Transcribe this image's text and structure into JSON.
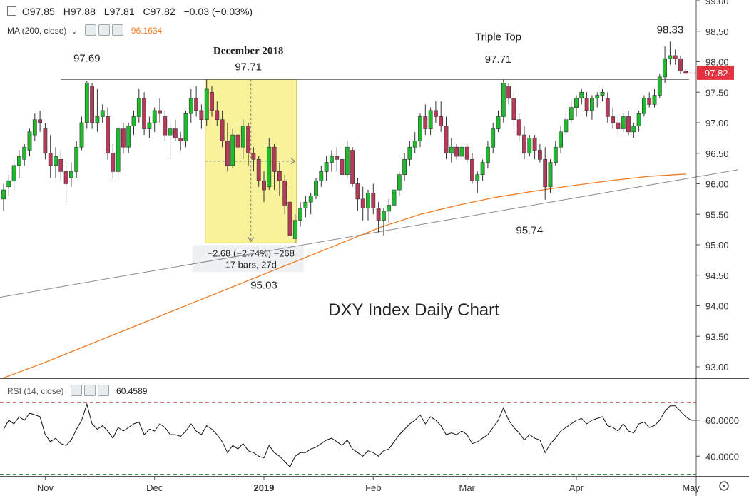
{
  "header": {
    "ohlc": [
      {
        "label": "O",
        "value": "97.85"
      },
      {
        "label": "H",
        "value": "97.88"
      },
      {
        "label": "L",
        "value": "97.81"
      },
      {
        "label": "C",
        "value": "97.82"
      }
    ],
    "change": "−0.03 (−0.03%)",
    "ma_label": "MA (200, close)",
    "ma_value": "96.1634",
    "rsi_label": "RSI (14, close)",
    "rsi_value": "60.4589"
  },
  "colors": {
    "up": "#1fbb2e",
    "down": "#b53a57",
    "ma": "#f07b25",
    "price_badge": "#e33240",
    "highlight": "#f8f29a",
    "rsi_line": "#111111",
    "rsi_upper": "#d23a3a",
    "rsi_lower": "#2a9a3c"
  },
  "chart_data": [
    {
      "type": "candlestick",
      "title": "DXY Index Daily Chart",
      "xlabel": "",
      "ylabel": "",
      "ylim": [
        92.75,
        99.0
      ],
      "y_ticks": [
        "93.00",
        "93.50",
        "94.00",
        "94.50",
        "95.00",
        "95.50",
        "96.00",
        "96.50",
        "97.00",
        "97.50",
        "98.00",
        "98.50",
        "99.00"
      ],
      "x_ticks": [
        {
          "label": "Nov",
          "index": 8
        },
        {
          "label": "Dec",
          "index": 29
        },
        {
          "label": "2019",
          "index": 50,
          "bold": true
        },
        {
          "label": "Feb",
          "index": 71
        },
        {
          "label": "Mar",
          "index": 89
        },
        {
          "label": "Apr",
          "index": 110
        },
        {
          "label": "May",
          "index": 132
        }
      ],
      "last_price": "97.82",
      "candles": [
        [
          95.75,
          96.0,
          95.55,
          95.9
        ],
        [
          95.95,
          96.15,
          95.8,
          96.05
        ],
        [
          96.05,
          96.4,
          95.9,
          96.3
        ],
        [
          96.3,
          96.55,
          96.1,
          96.45
        ],
        [
          96.4,
          96.65,
          96.3,
          96.6
        ],
        [
          96.55,
          96.9,
          96.45,
          96.85
        ],
        [
          96.8,
          97.15,
          96.7,
          97.05
        ],
        [
          97.05,
          97.2,
          96.85,
          97.0
        ],
        [
          96.9,
          97.0,
          96.4,
          96.5
        ],
        [
          96.5,
          96.8,
          96.1,
          96.3
        ],
        [
          96.3,
          96.6,
          96.1,
          96.45
        ],
        [
          96.4,
          96.55,
          96.05,
          96.2
        ],
        [
          96.2,
          96.35,
          95.7,
          96.0
        ],
        [
          96.1,
          96.35,
          95.95,
          96.2
        ],
        [
          96.2,
          96.7,
          96.1,
          96.6
        ],
        [
          96.6,
          97.1,
          96.55,
          97.0
        ],
        [
          97.0,
          97.69,
          96.9,
          97.65
        ],
        [
          97.6,
          97.65,
          96.9,
          97.0
        ],
        [
          97.0,
          97.55,
          96.85,
          97.1
        ],
        [
          97.1,
          97.3,
          97.0,
          97.2
        ],
        [
          97.1,
          97.25,
          96.4,
          96.5
        ],
        [
          96.5,
          96.65,
          96.1,
          96.2
        ],
        [
          96.2,
          96.95,
          96.1,
          96.9
        ],
        [
          96.9,
          97.0,
          96.5,
          96.6
        ],
        [
          96.6,
          97.0,
          96.5,
          96.95
        ],
        [
          96.95,
          97.2,
          96.8,
          97.1
        ],
        [
          97.1,
          97.55,
          97.0,
          97.4
        ],
        [
          97.4,
          97.5,
          96.8,
          96.9
        ],
        [
          96.9,
          97.1,
          96.75,
          97.0
        ],
        [
          97.0,
          97.25,
          96.85,
          97.2
        ],
        [
          97.2,
          97.4,
          97.0,
          97.15
        ],
        [
          97.1,
          97.2,
          96.7,
          96.8
        ],
        [
          96.8,
          97.0,
          96.4,
          96.9
        ],
        [
          96.9,
          97.05,
          96.7,
          96.75
        ],
        [
          96.75,
          96.85,
          96.55,
          96.7
        ],
        [
          96.7,
          97.2,
          96.6,
          97.15
        ],
        [
          97.15,
          97.55,
          97.0,
          97.4
        ],
        [
          97.4,
          97.6,
          97.1,
          97.2
        ],
        [
          97.2,
          97.3,
          96.9,
          97.05
        ],
        [
          97.05,
          97.71,
          96.95,
          97.55
        ],
        [
          97.5,
          97.6,
          97.1,
          97.2
        ],
        [
          97.2,
          97.35,
          96.95,
          97.05
        ],
        [
          97.05,
          97.2,
          96.6,
          96.7
        ],
        [
          96.7,
          97.0,
          96.2,
          96.3
        ],
        [
          96.3,
          96.9,
          96.25,
          96.8
        ],
        [
          96.8,
          97.0,
          96.5,
          96.6
        ],
        [
          96.6,
          97.05,
          96.4,
          96.95
        ],
        [
          96.95,
          97.0,
          96.3,
          96.5
        ],
        [
          96.5,
          96.6,
          96.2,
          96.4
        ],
        [
          96.4,
          96.45,
          95.95,
          96.05
        ],
        [
          96.05,
          96.2,
          95.7,
          95.9
        ],
        [
          95.95,
          96.75,
          95.9,
          96.6
        ],
        [
          96.6,
          96.65,
          95.9,
          96.2
        ],
        [
          96.2,
          96.35,
          95.8,
          96.05
        ],
        [
          96.05,
          96.15,
          95.5,
          95.65
        ],
        [
          95.7,
          96.0,
          95.1,
          95.15
        ],
        [
          95.1,
          95.5,
          95.03,
          95.4
        ],
        [
          95.4,
          95.7,
          95.3,
          95.6
        ],
        [
          95.6,
          95.8,
          95.45,
          95.7
        ],
        [
          95.7,
          95.85,
          95.5,
          95.8
        ],
        [
          95.8,
          96.1,
          95.75,
          96.05
        ],
        [
          96.05,
          96.3,
          95.95,
          96.2
        ],
        [
          96.2,
          96.45,
          96.05,
          96.35
        ],
        [
          96.35,
          96.55,
          96.2,
          96.45
        ],
        [
          96.45,
          96.6,
          96.2,
          96.4
        ],
        [
          96.4,
          96.55,
          96.05,
          96.15
        ],
        [
          96.15,
          96.7,
          96.1,
          96.6
        ],
        [
          96.55,
          96.6,
          95.95,
          96.0
        ],
        [
          96.0,
          96.1,
          95.55,
          95.75
        ],
        [
          95.75,
          95.95,
          95.4,
          95.6
        ],
        [
          95.6,
          95.9,
          95.4,
          95.85
        ],
        [
          95.85,
          96.0,
          95.5,
          95.6
        ],
        [
          95.6,
          95.7,
          95.2,
          95.4
        ],
        [
          95.4,
          95.6,
          95.15,
          95.55
        ],
        [
          95.55,
          95.75,
          95.35,
          95.65
        ],
        [
          95.65,
          96.0,
          95.55,
          95.9
        ],
        [
          95.9,
          96.2,
          95.8,
          96.15
        ],
        [
          96.15,
          96.5,
          96.05,
          96.4
        ],
        [
          96.4,
          96.7,
          96.3,
          96.6
        ],
        [
          96.6,
          96.85,
          96.5,
          96.7
        ],
        [
          96.7,
          97.15,
          96.6,
          97.1
        ],
        [
          97.1,
          97.3,
          96.8,
          96.9
        ],
        [
          96.9,
          97.25,
          96.8,
          97.2
        ],
        [
          97.2,
          97.35,
          97.0,
          97.1
        ],
        [
          97.1,
          97.35,
          96.85,
          96.95
        ],
        [
          96.95,
          97.1,
          96.4,
          96.5
        ],
        [
          96.5,
          96.75,
          96.35,
          96.6
        ],
        [
          96.6,
          96.65,
          96.4,
          96.45
        ],
        [
          96.45,
          96.65,
          96.4,
          96.6
        ],
        [
          96.6,
          96.65,
          96.35,
          96.4
        ],
        [
          96.4,
          96.5,
          96.0,
          96.05
        ],
        [
          96.05,
          96.2,
          95.85,
          96.15
        ],
        [
          96.15,
          96.4,
          96.05,
          96.35
        ],
        [
          96.35,
          96.7,
          96.25,
          96.6
        ],
        [
          96.6,
          97.0,
          96.5,
          96.9
        ],
        [
          96.9,
          97.2,
          96.85,
          97.1
        ],
        [
          97.1,
          97.71,
          97.0,
          97.65
        ],
        [
          97.6,
          97.65,
          97.3,
          97.4
        ],
        [
          97.4,
          97.5,
          96.95,
          97.05
        ],
        [
          97.05,
          97.15,
          96.7,
          96.8
        ],
        [
          96.8,
          96.95,
          96.4,
          96.5
        ],
        [
          96.5,
          96.8,
          96.45,
          96.75
        ],
        [
          96.75,
          96.8,
          96.4,
          96.55
        ],
        [
          96.55,
          96.65,
          96.35,
          96.4
        ],
        [
          96.4,
          96.6,
          95.74,
          95.95
        ],
        [
          95.95,
          96.4,
          95.85,
          96.35
        ],
        [
          96.35,
          96.7,
          96.3,
          96.6
        ],
        [
          96.6,
          96.95,
          96.5,
          96.85
        ],
        [
          96.85,
          97.15,
          96.8,
          97.05
        ],
        [
          97.05,
          97.35,
          97.0,
          97.25
        ],
        [
          97.25,
          97.45,
          97.1,
          97.4
        ],
        [
          97.4,
          97.55,
          97.3,
          97.5
        ],
        [
          97.4,
          97.5,
          97.1,
          97.2
        ],
        [
          97.2,
          97.45,
          97.05,
          97.4
        ],
        [
          97.4,
          97.5,
          97.25,
          97.45
        ],
        [
          97.45,
          97.55,
          97.35,
          97.5
        ],
        [
          97.4,
          97.5,
          97.0,
          97.1
        ],
        [
          97.1,
          97.25,
          96.9,
          97.0
        ],
        [
          97.0,
          97.1,
          96.8,
          96.9
        ],
        [
          96.9,
          97.15,
          96.85,
          97.1
        ],
        [
          97.1,
          97.2,
          96.8,
          96.85
        ],
        [
          96.85,
          97.0,
          96.75,
          96.95
        ],
        [
          96.95,
          97.2,
          96.85,
          97.15
        ],
        [
          97.15,
          97.45,
          97.1,
          97.4
        ],
        [
          97.4,
          97.5,
          97.25,
          97.3
        ],
        [
          97.3,
          97.55,
          97.25,
          97.45
        ],
        [
          97.45,
          97.8,
          97.4,
          97.75
        ],
        [
          97.75,
          98.25,
          97.65,
          98.05
        ],
        [
          98.05,
          98.33,
          97.95,
          98.1
        ],
        [
          98.1,
          98.2,
          97.95,
          98.05
        ],
        [
          98.05,
          98.1,
          97.8,
          97.85
        ],
        [
          97.85,
          97.88,
          97.81,
          97.82
        ]
      ],
      "ma200": [
        92.82,
        93.05,
        93.3,
        93.55,
        93.8,
        94.05,
        94.3,
        94.55,
        94.8,
        95.05,
        95.3,
        95.5,
        95.65,
        95.78,
        95.88,
        95.97,
        96.05,
        96.12,
        96.16
      ],
      "ma200_span": [
        0,
        131
      ],
      "overlays": {
        "horizontal_level": 97.71,
        "trendline": {
          "from": [
            -2,
            94.12
          ],
          "to": [
            141,
            96.23
          ]
        },
        "highlight": {
          "from_index": 39,
          "to_index": 56,
          "top": 97.71,
          "bottom": 95.03
        },
        "measure": {
          "line1": "−2.68 (−2.74%) −268",
          "line2": "17 bars, 27d"
        }
      },
      "annotations": [
        {
          "text": "97.69",
          "index": 16,
          "price": 98.0
        },
        {
          "text": "December 2018",
          "index": 47,
          "price": 98.13,
          "bold": true
        },
        {
          "text": "97.71",
          "index": 47,
          "price": 97.86
        },
        {
          "text": "Triple Top",
          "index": 95,
          "price": 98.35
        },
        {
          "text": "97.71",
          "index": 95,
          "price": 97.98
        },
        {
          "text": "98.33",
          "index": 128,
          "price": 98.47
        },
        {
          "text": "95.74",
          "index": 101,
          "price": 95.18
        },
        {
          "text": "95.03",
          "index": 50,
          "price": 94.28
        }
      ]
    },
    {
      "type": "line",
      "title": "",
      "series_name": "RSI (14, close)",
      "ylim": [
        29,
        83
      ],
      "y_ticks": [
        "40.0000",
        "60.0000"
      ],
      "bands": [
        70,
        30
      ],
      "values": [
        55,
        60,
        58,
        62,
        60,
        64,
        63,
        62,
        52,
        48,
        50,
        47,
        46,
        49,
        55,
        60,
        69,
        58,
        55,
        57,
        54,
        50,
        56,
        54,
        56,
        58,
        59,
        52,
        55,
        54,
        58,
        56,
        52,
        52,
        51,
        54,
        58,
        54,
        52,
        57,
        55,
        52,
        48,
        42,
        46,
        44,
        47,
        43,
        42,
        40,
        39,
        46,
        42,
        40,
        37,
        34,
        40,
        42,
        42,
        44,
        45,
        47,
        49,
        50,
        48,
        46,
        49,
        44,
        42,
        40,
        43,
        42,
        40,
        43,
        44,
        48,
        52,
        55,
        58,
        60,
        63,
        58,
        62,
        60,
        57,
        52,
        53,
        52,
        54,
        52,
        47,
        48,
        50,
        52,
        56,
        60,
        67,
        60,
        56,
        53,
        49,
        52,
        50,
        49,
        42,
        47,
        50,
        54,
        56,
        58,
        60,
        61,
        58,
        60,
        61,
        62,
        57,
        56,
        54,
        58,
        54,
        53,
        58,
        59,
        56,
        57,
        60,
        65,
        68,
        68,
        65,
        62,
        60,
        60
      ]
    }
  ]
}
